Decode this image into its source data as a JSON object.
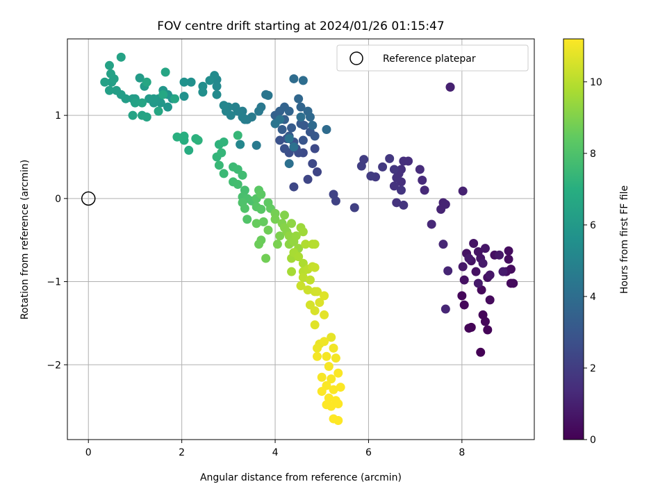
{
  "chart_data": {
    "type": "scatter",
    "title": "FOV centre drift starting at 2024/01/26 01:15:47",
    "xlabel": "Angular distance from reference (arcmin)",
    "ylabel": "Rotation from reference (arcmin)",
    "xlim": [
      -0.45,
      9.55
    ],
    "ylim": [
      -2.9,
      1.92
    ],
    "xticks": [
      0,
      2,
      4,
      6,
      8
    ],
    "xtick_labels": [
      "0",
      "2",
      "4",
      "6",
      "8"
    ],
    "yticks": [
      -2,
      -1,
      0,
      1
    ],
    "ytick_labels": [
      "−2",
      "−1",
      "0",
      "1"
    ],
    "grid": true,
    "legend": {
      "placement": "upper right",
      "entries": [
        {
          "label": "Reference platepar",
          "marker": "open-circle"
        }
      ]
    },
    "reference_point": {
      "x": 0,
      "y": 0
    },
    "colorbar": {
      "label": "Hours from first FF file",
      "range": [
        0,
        11.2
      ],
      "ticks": [
        0,
        2,
        4,
        6,
        8,
        10
      ],
      "tick_labels": [
        "0",
        "2",
        "4",
        "6",
        "8",
        "10"
      ],
      "colormap": "viridis"
    },
    "points": [
      [
        8.4,
        -1.85,
        0.02
      ],
      [
        8.2,
        -1.55,
        0.08
      ],
      [
        8.55,
        -1.58,
        0.1
      ],
      [
        8.15,
        -1.56,
        0.12
      ],
      [
        8.45,
        -1.4,
        0.15
      ],
      [
        8.5,
        -1.48,
        0.18
      ],
      [
        8.0,
        -1.17,
        0.2
      ],
      [
        8.05,
        -1.28,
        0.22
      ],
      [
        8.42,
        -1.1,
        0.25
      ],
      [
        8.6,
        -1.22,
        0.28
      ],
      [
        9.05,
        -1.02,
        0.3
      ],
      [
        9.1,
        -1.02,
        0.32
      ],
      [
        9.05,
        -0.85,
        0.35
      ],
      [
        9.0,
        -0.63,
        0.38
      ],
      [
        9.0,
        -0.73,
        0.4
      ],
      [
        8.95,
        -0.88,
        0.42
      ],
      [
        8.7,
        -0.68,
        0.45
      ],
      [
        8.55,
        -0.95,
        0.48
      ],
      [
        8.3,
        -0.88,
        0.5
      ],
      [
        8.05,
        -0.98,
        0.52
      ],
      [
        8.1,
        -0.66,
        0.55
      ],
      [
        8.2,
        -0.75,
        0.58
      ],
      [
        8.25,
        -0.54,
        0.6
      ],
      [
        8.35,
        -0.64,
        0.62
      ],
      [
        8.4,
        -0.72,
        0.65
      ],
      [
        8.5,
        -0.6,
        0.68
      ],
      [
        8.6,
        -0.92,
        0.7
      ],
      [
        8.8,
        -0.68,
        0.72
      ],
      [
        8.02,
        -0.82,
        0.75
      ],
      [
        8.15,
        -0.72,
        0.78
      ],
      [
        8.35,
        -1.02,
        0.8
      ],
      [
        8.45,
        -0.78,
        0.82
      ],
      [
        8.88,
        -0.88,
        0.85
      ],
      [
        7.75,
        1.34,
        1.0
      ],
      [
        7.75,
        1.34,
        1.02
      ],
      [
        8.02,
        0.09,
        1.05
      ],
      [
        7.6,
        -0.05,
        1.08
      ],
      [
        7.65,
        -0.07,
        1.1
      ],
      [
        7.55,
        -0.13,
        1.12
      ],
      [
        7.7,
        -0.87,
        1.15
      ],
      [
        7.65,
        -1.33,
        1.18
      ],
      [
        7.6,
        -0.55,
        1.2
      ],
      [
        7.35,
        -0.31,
        1.25
      ],
      [
        7.2,
        0.1,
        1.3
      ],
      [
        7.15,
        0.22,
        1.35
      ],
      [
        7.1,
        0.35,
        1.4
      ],
      [
        6.85,
        0.45,
        1.45
      ],
      [
        6.75,
        0.45,
        1.48
      ],
      [
        6.7,
        0.35,
        1.5
      ],
      [
        6.7,
        0.2,
        1.52
      ],
      [
        6.65,
        0.3,
        1.55
      ],
      [
        6.6,
        0.25,
        1.6
      ],
      [
        6.55,
        0.15,
        1.62
      ],
      [
        6.6,
        -0.05,
        1.65
      ],
      [
        6.75,
        -0.08,
        1.7
      ],
      [
        6.7,
        0.1,
        1.72
      ],
      [
        6.55,
        0.35,
        1.75
      ],
      [
        6.45,
        0.48,
        1.8
      ],
      [
        6.3,
        0.38,
        1.85
      ],
      [
        6.15,
        0.26,
        1.9
      ],
      [
        6.05,
        0.27,
        1.95
      ],
      [
        5.9,
        0.47,
        2.0
      ],
      [
        5.85,
        0.39,
        2.05
      ],
      [
        5.7,
        -0.11,
        2.1
      ],
      [
        5.3,
        -0.03,
        2.2
      ],
      [
        5.25,
        0.05,
        2.25
      ],
      [
        4.9,
        0.32,
        2.3
      ],
      [
        4.7,
        0.23,
        2.35
      ],
      [
        4.4,
        0.14,
        2.4
      ],
      [
        4.8,
        0.42,
        2.45
      ],
      [
        4.85,
        0.6,
        2.5
      ],
      [
        4.6,
        0.55,
        2.55
      ],
      [
        4.5,
        0.55,
        2.6
      ],
      [
        4.45,
        0.6,
        2.65
      ],
      [
        4.3,
        0.55,
        2.7
      ],
      [
        4.2,
        0.6,
        2.75
      ],
      [
        4.1,
        0.7,
        2.8
      ],
      [
        4.25,
        0.72,
        2.85
      ],
      [
        4.4,
        0.68,
        2.9
      ],
      [
        4.6,
        0.7,
        2.95
      ],
      [
        4.75,
        0.8,
        3.0
      ],
      [
        4.85,
        0.75,
        3.05
      ],
      [
        4.62,
        0.88,
        3.1
      ],
      [
        4.55,
        0.9,
        3.15
      ],
      [
        4.35,
        0.85,
        3.2
      ],
      [
        4.3,
        0.75,
        3.25
      ],
      [
        4.15,
        0.83,
        3.3
      ],
      [
        4.2,
        0.95,
        3.35
      ],
      [
        4.05,
        0.98,
        3.4
      ],
      [
        4.0,
        1.0,
        3.45
      ],
      [
        4.1,
        1.05,
        3.5
      ],
      [
        4.2,
        1.1,
        3.55
      ],
      [
        4.3,
        1.05,
        3.6
      ],
      [
        4.55,
        1.1,
        3.65
      ],
      [
        4.5,
        1.2,
        3.7
      ],
      [
        4.7,
        1.05,
        3.75
      ],
      [
        4.75,
        0.98,
        3.8
      ],
      [
        4.8,
        0.88,
        3.85
      ],
      [
        5.1,
        0.83,
        3.9
      ],
      [
        4.4,
        1.44,
        3.95
      ],
      [
        4.6,
        1.42,
        4.0
      ],
      [
        4.55,
        0.98,
        4.05
      ],
      [
        4.3,
        0.42,
        4.1
      ],
      [
        4.4,
        0.62,
        4.15
      ],
      [
        4.3,
        0.72,
        4.2
      ],
      [
        4.1,
        0.95,
        4.25
      ],
      [
        4.0,
        0.9,
        4.3
      ],
      [
        3.8,
        1.25,
        4.35
      ],
      [
        3.85,
        1.24,
        4.4
      ],
      [
        3.7,
        1.1,
        4.45
      ],
      [
        3.65,
        1.05,
        4.5
      ],
      [
        3.6,
        0.64,
        4.55
      ],
      [
        3.5,
        0.98,
        4.6
      ],
      [
        3.4,
        0.95,
        4.65
      ],
      [
        3.35,
        0.95,
        4.7
      ],
      [
        3.3,
        1.05,
        4.75
      ],
      [
        3.3,
        0.98,
        4.8
      ],
      [
        3.2,
        1.05,
        4.85
      ],
      [
        3.15,
        1.1,
        4.9
      ],
      [
        3.05,
        1.0,
        4.95
      ],
      [
        3.0,
        1.1,
        5.0
      ],
      [
        2.95,
        1.05,
        5.05
      ],
      [
        2.9,
        1.12,
        5.1
      ],
      [
        3.25,
        0.65,
        5.15
      ],
      [
        2.75,
        1.43,
        5.2
      ],
      [
        2.75,
        1.35,
        5.25
      ],
      [
        2.75,
        1.25,
        5.3
      ],
      [
        2.7,
        1.48,
        5.35
      ],
      [
        2.6,
        1.42,
        5.4
      ],
      [
        2.45,
        1.35,
        5.45
      ],
      [
        2.45,
        1.28,
        5.5
      ],
      [
        2.2,
        1.4,
        5.55
      ],
      [
        2.05,
        1.23,
        5.6
      ],
      [
        2.05,
        1.4,
        5.65
      ],
      [
        1.8,
        1.2,
        5.7
      ],
      [
        1.7,
        1.25,
        5.75
      ],
      [
        1.7,
        1.1,
        5.8
      ],
      [
        1.6,
        1.3,
        5.85
      ],
      [
        1.55,
        1.15,
        5.9
      ],
      [
        1.5,
        1.2,
        5.95
      ],
      [
        1.4,
        1.15,
        6.0
      ],
      [
        1.4,
        1.2,
        6.02
      ],
      [
        1.3,
        1.2,
        6.05
      ],
      [
        1.2,
        1.35,
        6.08
      ],
      [
        1.1,
        1.45,
        6.1
      ],
      [
        1.0,
        1.2,
        6.12
      ],
      [
        0.95,
        1.2,
        6.15
      ],
      [
        0.8,
        1.2,
        6.18
      ],
      [
        0.7,
        1.25,
        6.2
      ],
      [
        0.6,
        1.3,
        6.22
      ],
      [
        0.5,
        1.4,
        6.25
      ],
      [
        0.45,
        1.3,
        6.28
      ],
      [
        0.35,
        1.4,
        6.3
      ],
      [
        0.55,
        1.44,
        6.32
      ],
      [
        0.48,
        1.5,
        6.35
      ],
      [
        0.45,
        1.6,
        6.38
      ],
      [
        0.7,
        1.7,
        6.4
      ],
      [
        1.0,
        1.15,
        6.42
      ],
      [
        0.95,
        1.0,
        6.45
      ],
      [
        1.15,
        1.0,
        6.48
      ],
      [
        1.25,
        0.98,
        6.5
      ],
      [
        1.15,
        1.15,
        6.52
      ],
      [
        1.65,
        1.52,
        6.55
      ],
      [
        1.85,
        1.2,
        6.58
      ],
      [
        1.5,
        1.05,
        6.6
      ],
      [
        1.25,
        1.4,
        6.62
      ],
      [
        1.6,
        1.25,
        6.65
      ],
      [
        2.15,
        0.58,
        6.9
      ],
      [
        2.05,
        0.7,
        6.95
      ],
      [
        2.05,
        0.75,
        7.0
      ],
      [
        1.9,
        0.74,
        7.05
      ],
      [
        2.3,
        0.72,
        7.1
      ],
      [
        2.35,
        0.7,
        7.15
      ],
      [
        2.8,
        0.65,
        7.2
      ],
      [
        2.9,
        0.68,
        7.25
      ],
      [
        2.75,
        0.5,
        7.3
      ],
      [
        2.85,
        0.55,
        7.35
      ],
      [
        3.2,
        0.76,
        7.4
      ],
      [
        2.8,
        0.4,
        7.45
      ],
      [
        2.9,
        0.3,
        7.5
      ],
      [
        3.1,
        0.38,
        7.55
      ],
      [
        3.2,
        0.35,
        7.6
      ],
      [
        3.3,
        0.28,
        7.65
      ],
      [
        3.1,
        0.2,
        7.7
      ],
      [
        3.2,
        0.17,
        7.75
      ],
      [
        3.35,
        0.1,
        7.8
      ],
      [
        3.3,
        0.02,
        7.85
      ],
      [
        3.4,
        0.0,
        7.9
      ],
      [
        3.5,
        -0.03,
        7.95
      ],
      [
        3.3,
        -0.05,
        8.0
      ],
      [
        3.35,
        -0.12,
        8.05
      ],
      [
        3.4,
        -0.25,
        8.1
      ],
      [
        3.6,
        0.0,
        8.15
      ],
      [
        3.6,
        -0.1,
        8.2
      ],
      [
        3.7,
        -0.13,
        8.25
      ],
      [
        3.65,
        0.1,
        8.3
      ],
      [
        3.7,
        0.05,
        8.35
      ],
      [
        3.85,
        -0.05,
        8.4
      ],
      [
        3.9,
        -0.12,
        8.45
      ],
      [
        3.75,
        -0.28,
        8.5
      ],
      [
        3.6,
        -0.3,
        8.55
      ],
      [
        3.7,
        -0.5,
        8.6
      ],
      [
        3.65,
        -0.55,
        8.65
      ],
      [
        3.85,
        -0.38,
        8.7
      ],
      [
        3.8,
        -0.72,
        8.75
      ],
      [
        4.0,
        -0.18,
        8.8
      ],
      [
        4.0,
        -0.25,
        8.85
      ],
      [
        4.05,
        -0.55,
        8.9
      ],
      [
        4.1,
        -0.45,
        8.95
      ],
      [
        4.15,
        -0.3,
        9.0
      ],
      [
        4.2,
        -0.2,
        9.05
      ],
      [
        4.2,
        -0.35,
        9.1
      ],
      [
        4.25,
        -0.4,
        9.15
      ],
      [
        4.3,
        -0.55,
        9.2
      ],
      [
        4.35,
        -0.3,
        9.25
      ],
      [
        4.3,
        -0.45,
        9.3
      ],
      [
        4.4,
        -0.52,
        9.35
      ],
      [
        4.45,
        -0.45,
        9.4
      ],
      [
        4.5,
        -0.6,
        9.45
      ],
      [
        4.55,
        -0.35,
        9.5
      ],
      [
        4.6,
        -0.4,
        9.55
      ],
      [
        4.35,
        -0.72,
        9.6
      ],
      [
        4.35,
        -0.88,
        9.65
      ],
      [
        4.4,
        -0.65,
        9.7
      ],
      [
        4.5,
        -0.7,
        9.75
      ],
      [
        4.6,
        -0.78,
        9.8
      ],
      [
        4.65,
        -0.55,
        9.85
      ],
      [
        4.8,
        -0.55,
        9.9
      ],
      [
        4.85,
        -0.55,
        9.95
      ],
      [
        4.6,
        -0.88,
        10.0
      ],
      [
        4.7,
        -0.85,
        10.05
      ],
      [
        4.6,
        -0.95,
        10.1
      ],
      [
        4.75,
        -0.98,
        10.15
      ],
      [
        4.8,
        -0.82,
        10.2
      ],
      [
        4.85,
        -0.83,
        10.25
      ],
      [
        4.55,
        -1.05,
        10.3
      ],
      [
        4.7,
        -1.1,
        10.35
      ],
      [
        4.85,
        -1.12,
        10.4
      ],
      [
        4.9,
        -1.12,
        10.45
      ],
      [
        4.75,
        -1.28,
        10.5
      ],
      [
        4.85,
        -1.35,
        10.55
      ],
      [
        4.95,
        -1.25,
        10.6
      ],
      [
        5.05,
        -1.17,
        10.65
      ],
      [
        4.85,
        -1.52,
        10.7
      ],
      [
        5.05,
        -1.4,
        10.75
      ],
      [
        5.2,
        -1.67,
        10.8
      ],
      [
        4.95,
        -1.75,
        10.85
      ],
      [
        4.9,
        -1.8,
        10.9
      ],
      [
        5.05,
        -1.72,
        10.95
      ],
      [
        5.25,
        -1.8,
        11.0
      ],
      [
        5.3,
        -1.92,
        11.02
      ],
      [
        4.9,
        -1.9,
        11.04
      ],
      [
        5.1,
        -1.9,
        11.06
      ],
      [
        5.15,
        -2.02,
        11.08
      ],
      [
        5.0,
        -2.15,
        11.1
      ],
      [
        5.2,
        -2.17,
        11.12
      ],
      [
        5.35,
        -2.1,
        11.14
      ],
      [
        5.1,
        -2.25,
        11.15
      ],
      [
        5.25,
        -2.3,
        11.16
      ],
      [
        5.4,
        -2.27,
        11.17
      ],
      [
        5.0,
        -2.32,
        11.18
      ],
      [
        5.15,
        -2.4,
        11.19
      ],
      [
        5.3,
        -2.43,
        11.2
      ],
      [
        5.1,
        -2.48,
        11.2
      ],
      [
        5.2,
        -2.5,
        11.2
      ],
      [
        5.35,
        -2.47,
        11.2
      ],
      [
        5.25,
        -2.65,
        11.2
      ],
      [
        5.35,
        -2.67,
        11.2
      ]
    ]
  }
}
